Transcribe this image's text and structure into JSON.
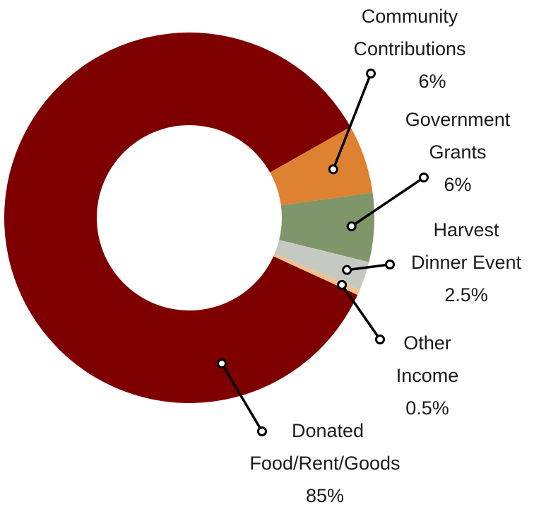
{
  "chart_data": {
    "type": "pie",
    "variant": "donut",
    "title": "",
    "slices": [
      {
        "label": "Donated Food/Rent/Goods",
        "label_lines": [
          "Donated",
          "Food/Rent/Goods"
        ],
        "value": 85,
        "value_text": "85%",
        "color": "#7e0000"
      },
      {
        "label": "Community Contributions",
        "label_lines": [
          "Community",
          "Contributions"
        ],
        "value": 6,
        "value_text": "6%",
        "color": "#de8130"
      },
      {
        "label": "Government Grants",
        "label_lines": [
          "Government",
          "Grants"
        ],
        "value": 6,
        "value_text": "6%",
        "color": "#7f966b"
      },
      {
        "label": "Harvest Dinner Event",
        "label_lines": [
          "Harvest",
          "Dinner Event"
        ],
        "value": 2.5,
        "value_text": "2.5%",
        "color": "#c5c9c2"
      },
      {
        "label": "Other Income",
        "label_lines": [
          "Other",
          "Income"
        ],
        "value": 0.5,
        "value_text": "0.5%",
        "color": "#f0c090"
      }
    ],
    "legend": "none",
    "leader_line_color": "#000000"
  }
}
